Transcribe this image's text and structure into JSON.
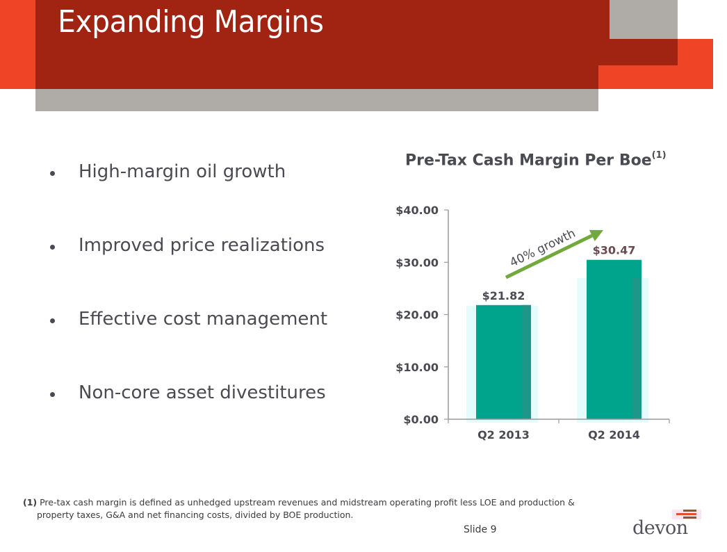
{
  "slide": {
    "title": "Expanding Margins",
    "slide_number_label": "Slide 9",
    "colors": {
      "dark_red": "#A12312",
      "orange": "#F04426",
      "gray": "#AFABA6",
      "bar_teal": "#00A38C",
      "arrow_green": "#72A93C",
      "text_gray": "#4A4A52"
    }
  },
  "bullets": [
    {
      "text": "High-margin oil growth"
    },
    {
      "text": "Improved price realizations"
    },
    {
      "text": "Effective cost management"
    },
    {
      "text": "Non-core asset divestitures"
    }
  ],
  "chart_data": {
    "type": "bar",
    "title": "Pre-Tax Cash Margin Per Boe",
    "title_superscript": "(1)",
    "categories": [
      "Q2 2013",
      "Q2 2014"
    ],
    "values": [
      21.82,
      30.47
    ],
    "data_labels": [
      "$21.82",
      "$30.47"
    ],
    "xlabel": "",
    "ylabel": "",
    "ylim": [
      0,
      40
    ],
    "yticks": [
      0,
      10,
      20,
      30,
      40
    ],
    "ytick_labels": [
      "$0.00",
      "$10.00",
      "$20.00",
      "$30.00",
      "$40.00"
    ],
    "grid": false,
    "legend": "none",
    "annotation": {
      "text": "40% growth",
      "type": "arrow",
      "direction": "up-right",
      "from_category": "Q2 2013",
      "to_category": "Q2 2014"
    }
  },
  "footnote": {
    "ref": "(1)",
    "line1": "Pre-tax cash margin is defined as unhedged upstream revenues and midstream operating profit less LOE and production &",
    "line2": "property taxes, G&A and net financing costs, divided by BOE production."
  },
  "logo": {
    "text": "devon"
  }
}
